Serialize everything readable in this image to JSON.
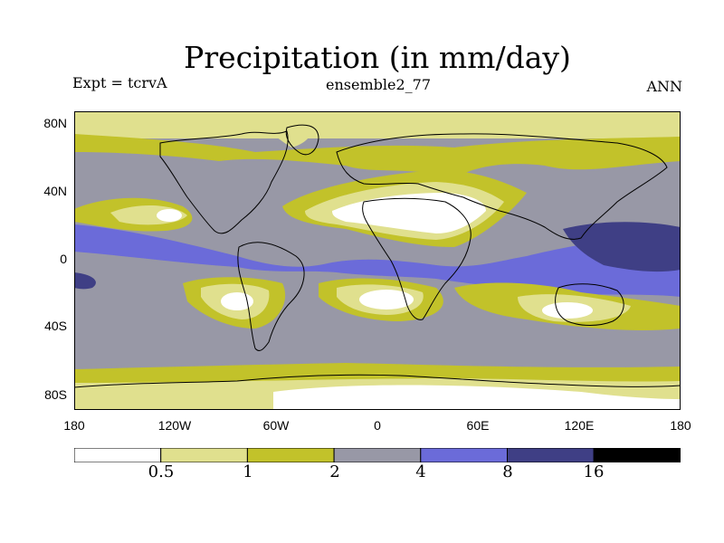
{
  "title": "Precipitation (in mm/day)",
  "subtitle_left": "Expt = tcrvA",
  "subtitle_center": "ensemble2_77",
  "subtitle_right": "ANN",
  "y_ticks": [
    "80N",
    "40N",
    "0",
    "40S",
    "80S"
  ],
  "x_ticks": [
    "180",
    "120W",
    "60W",
    "0",
    "60E",
    "120E",
    "180"
  ],
  "legend": {
    "bins": [
      {
        "color": "#ffffff"
      },
      {
        "color": "#e0e08e"
      },
      {
        "color": "#c2c22a"
      },
      {
        "color": "#9898a6"
      },
      {
        "color": "#6b6bd9"
      },
      {
        "color": "#3f3f85"
      },
      {
        "color": "#000000"
      }
    ],
    "labels": [
      "0.5",
      "1",
      "2",
      "4",
      "8",
      "16"
    ]
  },
  "colors": {
    "lt0_5": "#ffffff",
    "c0_5_1": "#e0e08e",
    "c1_2": "#c2c22a",
    "c2_4": "#9898a6",
    "c4_8": "#6b6bd9",
    "c8_16": "#3f3f85",
    "gt16": "#000000"
  }
}
